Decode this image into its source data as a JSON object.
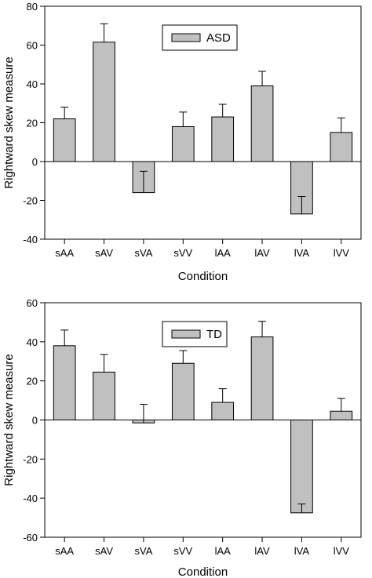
{
  "chart_data": [
    {
      "type": "bar",
      "legend": "ASD",
      "legend_position": "top-center",
      "xlabel": "Condition",
      "ylabel": "Rightward skew measure",
      "ylim": [
        -40,
        80
      ],
      "yticks": [
        -40,
        -20,
        0,
        20,
        40,
        60,
        80
      ],
      "grid": false,
      "categories": [
        "sAA",
        "sAV",
        "sVA",
        "sVV",
        "lAA",
        "lAV",
        "lVA",
        "lVV"
      ],
      "values": [
        22,
        61.5,
        -16,
        18,
        23,
        39,
        -27,
        15
      ],
      "error": [
        6,
        9.5,
        11,
        7.5,
        6.5,
        7.5,
        9,
        7.5
      ],
      "bar_color": "#c0c0c0"
    },
    {
      "type": "bar",
      "legend": "TD",
      "legend_position": "top-center",
      "xlabel": "Condition",
      "ylabel": "Rightward skew measure",
      "ylim": [
        -60,
        60
      ],
      "yticks": [
        -60,
        -40,
        -20,
        0,
        20,
        40,
        60
      ],
      "grid": false,
      "categories": [
        "sAA",
        "sAV",
        "sVA",
        "sVV",
        "lAA",
        "lAV",
        "lVA",
        "lVV"
      ],
      "values": [
        38,
        24.5,
        -1.5,
        29,
        9,
        42.5,
        -47.5,
        4.5
      ],
      "error": [
        8,
        9,
        9.5,
        6.5,
        7,
        8,
        4.5,
        6.5
      ],
      "bar_color": "#c0c0c0"
    }
  ]
}
